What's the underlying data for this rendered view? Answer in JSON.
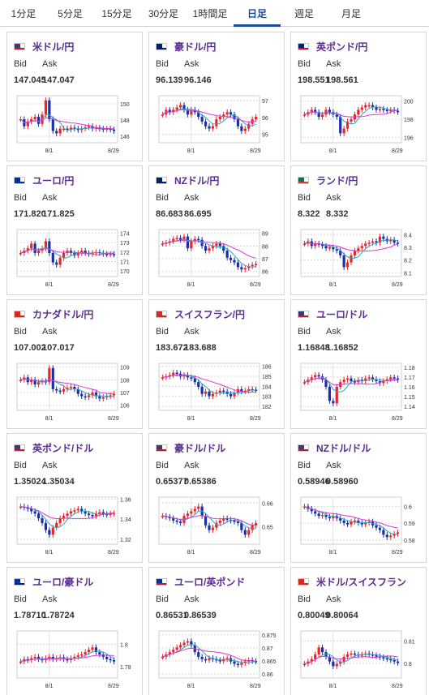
{
  "tabs": [
    {
      "label": "1分足",
      "active": false
    },
    {
      "label": "5分足",
      "active": false
    },
    {
      "label": "15分足",
      "active": false
    },
    {
      "label": "30分足",
      "active": false
    },
    {
      "label": "1時間足",
      "active": false
    },
    {
      "label": "日足",
      "active": true
    },
    {
      "label": "週足",
      "active": false
    },
    {
      "label": "月足",
      "active": false
    }
  ],
  "labels": {
    "bid": "Bid",
    "ask": "Ask"
  },
  "colors": {
    "accent": "#1a4a9c",
    "pair_name": "#5a2d91",
    "candle_up": "#e8262a",
    "candle_down": "#1b2fa8",
    "ma_short": "#2aa6c8",
    "ma_long": "#d63ad6"
  },
  "cards": [
    {
      "name": "米ドル/円",
      "flag": "us-flag-icon",
      "bid": "147.045",
      "ask": "147.047",
      "chart": {
        "ticks": [
          "150",
          "148",
          "146"
        ],
        "tick_values": [
          150,
          148,
          146
        ],
        "range": [
          145.2,
          151.0
        ],
        "x_labels": [
          "8/1",
          "8/29"
        ],
        "shape": [
          0.5,
          0.35,
          0.45,
          0.5,
          0.55,
          0.4,
          0.6,
          0.9,
          0.5,
          0.25,
          0.2,
          0.3,
          0.3,
          0.28,
          0.32,
          0.3,
          0.27,
          0.3,
          0.33,
          0.35,
          0.3,
          0.32,
          0.3,
          0.28,
          0.3,
          0.28,
          0.25
        ]
      }
    },
    {
      "name": "豪ドル/円",
      "flag": "au-flag-icon",
      "bid": "96.139",
      "ask": "96.146",
      "chart": {
        "ticks": [
          "97",
          "96",
          "95"
        ],
        "tick_values": [
          97,
          96,
          95
        ],
        "range": [
          94.5,
          97.3
        ],
        "x_labels": [
          "8/1",
          "8/29"
        ],
        "shape": [
          0.6,
          0.7,
          0.65,
          0.7,
          0.75,
          0.8,
          0.7,
          0.6,
          0.7,
          0.65,
          0.55,
          0.45,
          0.35,
          0.3,
          0.35,
          0.5,
          0.55,
          0.6,
          0.65,
          0.6,
          0.5,
          0.35,
          0.25,
          0.3,
          0.4,
          0.5,
          0.55
        ]
      }
    },
    {
      "name": "英ポンド/円",
      "flag": "gb-flag-icon",
      "bid": "198.551",
      "ask": "198.561",
      "chart": {
        "ticks": [
          "200",
          "198",
          "196"
        ],
        "tick_values": [
          200,
          198,
          196
        ],
        "range": [
          195.4,
          200.6
        ],
        "x_labels": [
          "8/1",
          "8/29"
        ],
        "shape": [
          0.6,
          0.65,
          0.7,
          0.65,
          0.55,
          0.6,
          0.7,
          0.65,
          0.6,
          0.55,
          0.2,
          0.3,
          0.45,
          0.5,
          0.6,
          0.7,
          0.75,
          0.8,
          0.8,
          0.75,
          0.7,
          0.72,
          0.7,
          0.68,
          0.7,
          0.68,
          0.65
        ]
      }
    },
    {
      "name": "ユーロ/円",
      "flag": "eu-flag-icon",
      "bid": "171.820",
      "ask": "171.825",
      "chart": {
        "ticks": [
          "174",
          "173",
          "172",
          "171",
          "170"
        ],
        "tick_values": [
          174,
          173,
          172,
          171,
          170
        ],
        "range": [
          169.4,
          174.4
        ],
        "x_labels": [
          "8/1",
          "8/29"
        ],
        "shape": [
          0.5,
          0.55,
          0.6,
          0.7,
          0.5,
          0.55,
          0.6,
          0.75,
          0.5,
          0.3,
          0.25,
          0.4,
          0.5,
          0.55,
          0.5,
          0.45,
          0.5,
          0.55,
          0.5,
          0.48,
          0.5,
          0.52,
          0.5,
          0.48,
          0.47,
          0.48,
          0.47
        ]
      }
    },
    {
      "name": "NZドル/円",
      "flag": "nz-flag-icon",
      "bid": "86.683",
      "ask": "86.695",
      "chart": {
        "ticks": [
          "89",
          "88",
          "87",
          "86"
        ],
        "tick_values": [
          89,
          88,
          87,
          86
        ],
        "range": [
          85.6,
          89.3
        ],
        "x_labels": [
          "8/1",
          "8/29"
        ],
        "shape": [
          0.7,
          0.72,
          0.75,
          0.8,
          0.82,
          0.78,
          0.85,
          0.6,
          0.75,
          0.8,
          0.78,
          0.65,
          0.55,
          0.6,
          0.65,
          0.7,
          0.65,
          0.55,
          0.4,
          0.35,
          0.3,
          0.2,
          0.15,
          0.18,
          0.22,
          0.25,
          0.27
        ]
      }
    },
    {
      "name": "ランド/円",
      "flag": "za-flag-icon",
      "bid": "8.322",
      "ask": "8.332",
      "chart": {
        "ticks": [
          "8.4",
          "8.3",
          "8.2",
          "8.1"
        ],
        "tick_values": [
          8.4,
          8.3,
          8.2,
          8.1
        ],
        "range": [
          8.07,
          8.44
        ],
        "x_labels": [
          "8/1",
          "8/29"
        ],
        "shape": [
          0.7,
          0.75,
          0.65,
          0.7,
          0.68,
          0.65,
          0.6,
          0.62,
          0.58,
          0.55,
          0.45,
          0.2,
          0.3,
          0.45,
          0.55,
          0.6,
          0.65,
          0.7,
          0.72,
          0.75,
          0.72,
          0.85,
          0.8,
          0.75,
          0.78,
          0.72,
          0.7
        ]
      }
    },
    {
      "name": "カナダドル/円",
      "flag": "ca-flag-icon",
      "bid": "107.002",
      "ask": "107.017",
      "chart": {
        "ticks": [
          "109",
          "108",
          "107",
          "106"
        ],
        "tick_values": [
          109,
          108,
          107,
          106
        ],
        "range": [
          105.6,
          109.3
        ],
        "x_labels": [
          "8/1",
          "8/29"
        ],
        "shape": [
          0.65,
          0.7,
          0.6,
          0.65,
          0.55,
          0.6,
          0.62,
          0.6,
          0.9,
          0.45,
          0.42,
          0.4,
          0.45,
          0.48,
          0.5,
          0.45,
          0.35,
          0.3,
          0.28,
          0.32,
          0.38,
          0.3,
          0.25,
          0.28,
          0.3,
          0.32,
          0.35
        ]
      }
    },
    {
      "name": "スイスフラン/円",
      "flag": "ch-flag-icon",
      "bid": "183.672",
      "ask": "183.688",
      "chart": {
        "ticks": [
          "186",
          "185",
          "184",
          "183",
          "182"
        ],
        "tick_values": [
          186,
          185,
          184,
          183,
          182
        ],
        "range": [
          181.6,
          186.3
        ],
        "x_labels": [
          "8/1",
          "8/29"
        ],
        "shape": [
          0.7,
          0.72,
          0.75,
          0.8,
          0.78,
          0.72,
          0.75,
          0.7,
          0.68,
          0.6,
          0.5,
          0.35,
          0.4,
          0.3,
          0.35,
          0.38,
          0.42,
          0.4,
          0.35,
          0.3,
          0.38,
          0.45,
          0.4,
          0.42,
          0.45,
          0.44,
          0.43
        ]
      }
    },
    {
      "name": "ユーロ/ドル",
      "flag": "eu-us-flag-icon",
      "bid": "1.16848",
      "ask": "1.16852",
      "chart": {
        "ticks": [
          "1.18",
          "1.17",
          "1.16",
          "1.15",
          "1.14"
        ],
        "tick_values": [
          1.18,
          1.17,
          1.16,
          1.15,
          1.14
        ],
        "range": [
          1.136,
          1.184
        ],
        "x_labels": [
          "8/1",
          "8/29"
        ],
        "shape": [
          0.6,
          0.65,
          0.7,
          0.75,
          0.72,
          0.65,
          0.5,
          0.2,
          0.15,
          0.5,
          0.6,
          0.65,
          0.68,
          0.62,
          0.6,
          0.65,
          0.62,
          0.68,
          0.7,
          0.66,
          0.62,
          0.58,
          0.62,
          0.66,
          0.7,
          0.68,
          0.65
        ]
      }
    },
    {
      "name": "英ポンド/ドル",
      "flag": "gb-us-flag-icon",
      "bid": "1.35024",
      "ask": "1.35034",
      "chart": {
        "ticks": [
          "1.36",
          "1.34",
          "1.32"
        ],
        "tick_values": [
          1.36,
          1.34,
          1.32
        ],
        "range": [
          1.315,
          1.362
        ],
        "x_labels": [
          "8/1",
          "8/29"
        ],
        "shape": [
          0.8,
          0.78,
          0.75,
          0.7,
          0.65,
          0.55,
          0.45,
          0.3,
          0.2,
          0.35,
          0.45,
          0.55,
          0.6,
          0.65,
          0.7,
          0.72,
          0.75,
          0.7,
          0.65,
          0.62,
          0.6,
          0.65,
          0.68,
          0.64,
          0.62,
          0.65,
          0.66
        ]
      }
    },
    {
      "name": "豪ドル/ドル",
      "flag": "au-us-flag-icon",
      "bid": "0.65377",
      "ask": "0.65386",
      "chart": {
        "ticks": [
          "0.66",
          "0.65"
        ],
        "tick_values": [
          0.66,
          0.65
        ],
        "range": [
          0.6425,
          0.6625
        ],
        "x_labels": [
          "8/1",
          "8/29"
        ],
        "shape": [
          0.6,
          0.58,
          0.55,
          0.5,
          0.48,
          0.45,
          0.6,
          0.65,
          0.7,
          0.75,
          0.8,
          0.6,
          0.4,
          0.3,
          0.35,
          0.45,
          0.5,
          0.55,
          0.52,
          0.5,
          0.48,
          0.45,
          0.3,
          0.2,
          0.3,
          0.4,
          0.45
        ]
      }
    },
    {
      "name": "NZドル/ドル",
      "flag": "nz-us-flag-icon",
      "bid": "0.58946",
      "ask": "0.58960",
      "chart": {
        "ticks": [
          "0.6",
          "0.59",
          "0.58"
        ],
        "tick_values": [
          0.6,
          0.59,
          0.58
        ],
        "range": [
          0.5775,
          0.6055
        ],
        "x_labels": [
          "8/1",
          "8/29"
        ],
        "shape": [
          0.8,
          0.75,
          0.7,
          0.65,
          0.6,
          0.62,
          0.58,
          0.55,
          0.6,
          0.55,
          0.5,
          0.45,
          0.42,
          0.48,
          0.5,
          0.45,
          0.42,
          0.45,
          0.48,
          0.4,
          0.35,
          0.3,
          0.2,
          0.15,
          0.18,
          0.22,
          0.25
        ]
      }
    },
    {
      "name": "ユーロ/豪ドル",
      "flag": "eu-au-flag-icon",
      "bid": "1.78710",
      "ask": "1.78724",
      "chart": {
        "ticks": [
          "1.8",
          "1.78"
        ],
        "tick_values": [
          1.8,
          1.78
        ],
        "range": [
          1.77,
          1.812
        ],
        "x_labels": [
          "8/1",
          "8/29"
        ],
        "shape": [
          0.35,
          0.4,
          0.38,
          0.42,
          0.45,
          0.4,
          0.38,
          0.42,
          0.45,
          0.4,
          0.42,
          0.44,
          0.4,
          0.38,
          0.42,
          0.45,
          0.48,
          0.5,
          0.55,
          0.6,
          0.65,
          0.55,
          0.5,
          0.45,
          0.4,
          0.38,
          0.35
        ]
      }
    },
    {
      "name": "ユーロ/英ポンド",
      "flag": "eu-gb-flag-icon",
      "bid": "0.86531",
      "ask": "0.86539",
      "chart": {
        "ticks": [
          "0.875",
          "0.87",
          "0.865",
          "0.86"
        ],
        "tick_values": [
          0.875,
          0.87,
          0.865,
          0.86
        ],
        "range": [
          0.8585,
          0.8765
        ],
        "x_labels": [
          "8/1",
          "8/29"
        ],
        "shape": [
          0.45,
          0.5,
          0.55,
          0.6,
          0.65,
          0.7,
          0.75,
          0.78,
          0.7,
          0.55,
          0.45,
          0.4,
          0.38,
          0.42,
          0.4,
          0.38,
          0.36,
          0.4,
          0.42,
          0.35,
          0.3,
          0.28,
          0.32,
          0.35,
          0.38,
          0.36,
          0.35
        ]
      }
    },
    {
      "name": "米ドル/スイスフラン",
      "flag": "us-ch-flag-icon",
      "bid": "0.80049",
      "ask": "0.80064",
      "chart": {
        "ticks": [
          "0.81",
          "0.8"
        ],
        "tick_values": [
          0.81,
          0.8
        ],
        "range": [
          0.7935,
          0.8145
        ],
        "x_labels": [
          "8/1",
          "8/29"
        ],
        "shape": [
          0.3,
          0.35,
          0.4,
          0.5,
          0.65,
          0.55,
          0.45,
          0.35,
          0.25,
          0.3,
          0.35,
          0.45,
          0.5,
          0.52,
          0.5,
          0.48,
          0.5,
          0.52,
          0.5,
          0.48,
          0.46,
          0.44,
          0.42,
          0.4,
          0.38,
          0.35,
          0.32
        ]
      }
    }
  ]
}
